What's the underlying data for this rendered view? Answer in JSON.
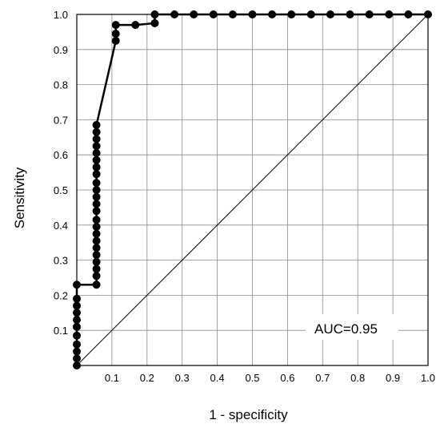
{
  "chart_data": {
    "type": "line",
    "title": "",
    "xlabel": "1 - specificity",
    "ylabel": "Sensitivity",
    "xlim": [
      0,
      1
    ],
    "ylim": [
      0,
      1
    ],
    "grid": true,
    "x_ticks": [
      "0.1",
      "0.2",
      "0.3",
      "0.4",
      "0.5",
      "0.6",
      "0.7",
      "0.8",
      "0.9",
      "1.0"
    ],
    "y_ticks": [
      "0.1",
      "0.2",
      "0.3",
      "0.4",
      "0.5",
      "0.6",
      "0.7",
      "0.8",
      "0.9",
      "1.0"
    ],
    "annotation": "AUC=0.95",
    "series": [
      {
        "x": [
          0,
          0,
          0,
          0,
          0,
          0,
          0,
          0,
          0,
          0,
          0,
          0.056,
          0.056,
          0.056,
          0.056,
          0.056,
          0.056,
          0.056,
          0.056,
          0.056,
          0.056,
          0.056,
          0.056,
          0.056,
          0.056,
          0.056,
          0.056,
          0.056,
          0.056,
          0.056,
          0.056,
          0.056,
          0.056,
          0.056,
          0.111,
          0.111,
          0.111,
          0.167,
          0.222,
          0.222,
          0.278,
          0.333,
          0.389,
          0.444,
          0.5,
          0.556,
          0.611,
          0.667,
          0.722,
          0.778,
          0.833,
          0.889,
          0.944,
          1.0
        ],
        "y": [
          0,
          0.02,
          0.04,
          0.06,
          0.085,
          0.11,
          0.13,
          0.15,
          0.17,
          0.19,
          0.23,
          0.23,
          0.255,
          0.275,
          0.295,
          0.315,
          0.335,
          0.355,
          0.375,
          0.395,
          0.415,
          0.44,
          0.46,
          0.48,
          0.5,
          0.52,
          0.545,
          0.565,
          0.585,
          0.605,
          0.625,
          0.645,
          0.665,
          0.685,
          0.925,
          0.945,
          0.97,
          0.97,
          0.975,
          1.0,
          1.0,
          1.0,
          1.0,
          1.0,
          1.0,
          1.0,
          1.0,
          1.0,
          1.0,
          1.0,
          1.0,
          1.0,
          1.0,
          1.0
        ],
        "color": "#000000"
      }
    ],
    "reference_line": {
      "from": [
        0,
        0
      ],
      "to": [
        1,
        1
      ],
      "color": "#000000"
    }
  }
}
